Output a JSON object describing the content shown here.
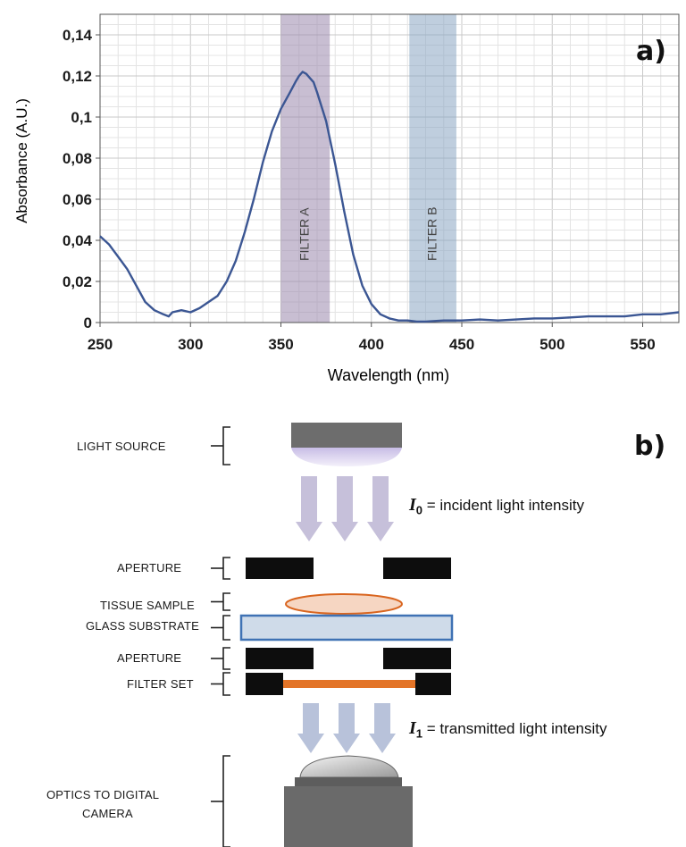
{
  "chart_data": {
    "type": "line",
    "panel_label": "a)",
    "xlabel": "Wavelength (nm)",
    "ylabel": "Absorbance (A.U.)",
    "xlim": [
      250,
      570
    ],
    "ylim": [
      0,
      0.15
    ],
    "x_ticks": [
      250,
      300,
      350,
      400,
      450,
      500,
      550
    ],
    "y_ticks": [
      0,
      0.02,
      0.04,
      0.06,
      0.08,
      0.1,
      0.12,
      0.14
    ],
    "y_tick_labels": [
      "0",
      "0,02",
      "0,04",
      "0,06",
      "0,08",
      "0,1",
      "0,12",
      "0,14"
    ],
    "grid": true,
    "line_color": "#3b5693",
    "filters": [
      {
        "label": "FILTER A",
        "range": [
          350,
          377
        ],
        "color": "#9b89ad"
      },
      {
        "label": "FILTER B",
        "range": [
          421,
          447
        ],
        "color": "#8aa6c2"
      }
    ],
    "series": [
      {
        "x": [
          250,
          255,
          260,
          265,
          270,
          275,
          280,
          285,
          288,
          290,
          295,
          300,
          305,
          310,
          315,
          320,
          325,
          330,
          335,
          340,
          345,
          350,
          355,
          358,
          360,
          362,
          364,
          366,
          368,
          370,
          375,
          380,
          385,
          390,
          395,
          400,
          405,
          410,
          415,
          420,
          425,
          430,
          440,
          450,
          460,
          470,
          480,
          490,
          500,
          510,
          520,
          530,
          540,
          550,
          560,
          570
        ],
        "y": [
          0.042,
          0.038,
          0.032,
          0.026,
          0.018,
          0.01,
          0.006,
          0.004,
          0.003,
          0.005,
          0.006,
          0.005,
          0.007,
          0.01,
          0.013,
          0.02,
          0.03,
          0.044,
          0.06,
          0.078,
          0.093,
          0.104,
          0.112,
          0.117,
          0.12,
          0.122,
          0.121,
          0.119,
          0.117,
          0.112,
          0.098,
          0.077,
          0.054,
          0.033,
          0.018,
          0.009,
          0.004,
          0.002,
          0.001,
          0.001,
          0.0005,
          0.0005,
          0.001,
          0.001,
          0.0015,
          0.001,
          0.0015,
          0.002,
          0.002,
          0.0025,
          0.003,
          0.003,
          0.003,
          0.004,
          0.004,
          0.005
        ]
      }
    ]
  },
  "diagram": {
    "panel_label": "b)",
    "labels": {
      "light_source": "LIGHT SOURCE",
      "aperture_top": "APERTURE",
      "tissue_sample": "TISSUE SAMPLE",
      "glass_substrate": "GLASS SUBSTRATE",
      "aperture_bottom": "APERTURE",
      "filter_set": "FILTER SET",
      "optics_line1": "OPTICS TO DIGITAL",
      "optics_line2": "CAMERA"
    },
    "incident": {
      "symbol": "I",
      "subscript": "0",
      "text": " = incident light intensity"
    },
    "transmitted": {
      "symbol": "I",
      "subscript": "1",
      "text": " = transmitted light intensity"
    },
    "colors": {
      "incident_arrow": "#c6c0da",
      "transmitted_arrow": "#b8c2da",
      "filter": "#e37427",
      "tissue_fill": "#f6d6c2",
      "tissue_stroke": "#d9651f",
      "glass_fill": "#cfdbe9",
      "glass_stroke": "#3f72b4"
    }
  }
}
